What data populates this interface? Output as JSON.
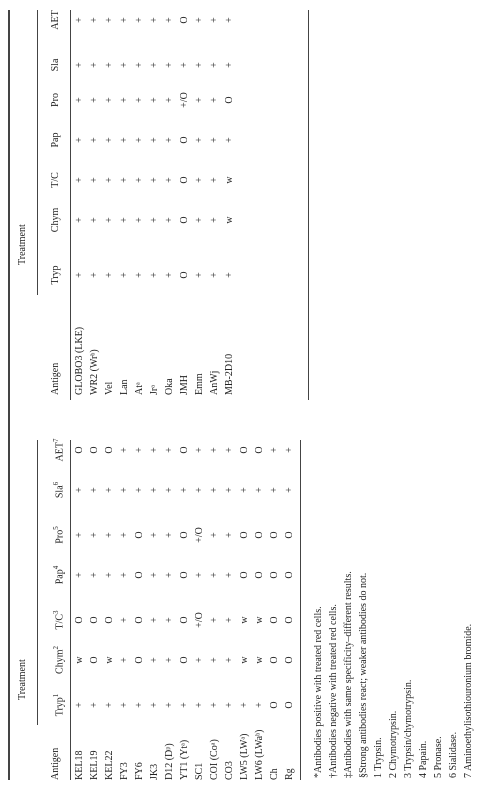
{
  "tables": [
    {
      "header": "Treatment",
      "columns": [
        {
          "label": "Antigen"
        },
        {
          "label": "Tryp",
          "note": "1"
        },
        {
          "label": "Chym",
          "note": "2"
        },
        {
          "label": "T/C",
          "note": "3"
        },
        {
          "label": "Pap",
          "note": "4"
        },
        {
          "label": "Pro",
          "note": "5"
        },
        {
          "label": "Sla",
          "note": "6"
        },
        {
          "label": "AET",
          "note": "7"
        }
      ],
      "rows": [
        [
          "KEL18",
          "+",
          "w",
          "O",
          "+",
          "+",
          "+",
          "O"
        ],
        [
          "KEL19",
          "+",
          "O",
          "O",
          "+",
          "+",
          "+",
          "O"
        ],
        [
          "KEL22",
          "+",
          "w",
          "O",
          "+",
          "+",
          "+",
          "O"
        ],
        [
          "FY3",
          "+",
          "+",
          "+",
          "+",
          "+",
          "+",
          "+"
        ],
        [
          "FY6",
          "+",
          "O",
          "O",
          "O",
          "O",
          "+",
          "+"
        ],
        [
          "JK3",
          "+",
          "+",
          "+",
          "+",
          "+",
          "+",
          "+"
        ],
        [
          "D12 (Dᵖ)",
          "+",
          "+",
          "+",
          "+",
          "+",
          "+",
          "+"
        ],
        [
          "YT1 (Ytᵃ)",
          "+",
          "O",
          "O",
          "O",
          "O",
          "+",
          "O"
        ],
        [
          "SC1",
          "+",
          "+",
          "+/O",
          "+",
          "+/O",
          "+",
          "+"
        ],
        [
          "COI (Coᵃ)",
          "+",
          "+",
          "+",
          "+",
          "+",
          "+",
          "+"
        ],
        [
          "CO3",
          "+",
          "+",
          "+",
          "+",
          "+",
          "+",
          "+"
        ],
        [
          "LW5 (LWᵃ)",
          "+",
          "w",
          "w",
          "O",
          "O",
          "+",
          "O"
        ],
        [
          "LW6 (LWaᵇ)",
          "+",
          "w",
          "w",
          "O",
          "O",
          "+",
          "O"
        ],
        [
          "Ch",
          "O",
          "O",
          "O",
          "O",
          "O",
          "+",
          "+"
        ],
        [
          "Rg",
          "O",
          "O",
          "O",
          "O",
          "O",
          "+",
          "+"
        ]
      ]
    },
    {
      "header": "Treatment",
      "columns": [
        {
          "label": "Antigen"
        },
        {
          "label": "Tryp"
        },
        {
          "label": "Chym"
        },
        {
          "label": "T/C"
        },
        {
          "label": "Pap"
        },
        {
          "label": "Pro"
        },
        {
          "label": "Sla"
        },
        {
          "label": "AET"
        }
      ],
      "rows": [
        [
          "GLOBO3 (LKE)",
          "+",
          "+",
          "+",
          "+",
          "+",
          "+",
          "+"
        ],
        [
          "WR2 (Wrᵇ)",
          "+",
          "+",
          "+",
          "+",
          "+",
          "+",
          "+"
        ],
        [
          "Vel",
          "+",
          "+",
          "+",
          "+",
          "+",
          "+",
          "+"
        ],
        [
          "Lan",
          "+",
          "+",
          "+",
          "+",
          "+",
          "+",
          "+"
        ],
        [
          "Atᵃ",
          "+",
          "+",
          "+",
          "+",
          "+",
          "+",
          "+"
        ],
        [
          "Jrᵃ",
          "+",
          "+",
          "+",
          "+",
          "+",
          "+",
          "+"
        ],
        [
          "Oka",
          "+",
          "+",
          "+",
          "+",
          "+",
          "+",
          "+"
        ],
        [
          "JMH",
          "O",
          "O",
          "O",
          "O",
          "+/O",
          "+",
          "O"
        ],
        [
          "Emm",
          "+",
          "+",
          "+",
          "+",
          "+",
          "+",
          "+"
        ],
        [
          "AnWj",
          "+",
          "+",
          "+",
          "+",
          "+",
          "+",
          "+"
        ],
        [
          "MB-2D10",
          "+",
          "w",
          "w",
          "+",
          "O",
          "+",
          "+"
        ]
      ]
    }
  ],
  "footnotes": [
    "*Antibodies positive with treated red cells.",
    "†Antibodies negative with treated red cells.",
    "‡Antibodies with same specificity–different results.",
    "§Strong antibodies react; weaker antibodies do not.",
    "1 Trypsin.",
    "2 Chymotrypsin.",
    "3 Trypsin/chymotrypsin.",
    "4 Papain.",
    "5 Pronase.",
    "6 Sialidase.",
    "7 Aminoethylisothiouronium bromide."
  ]
}
